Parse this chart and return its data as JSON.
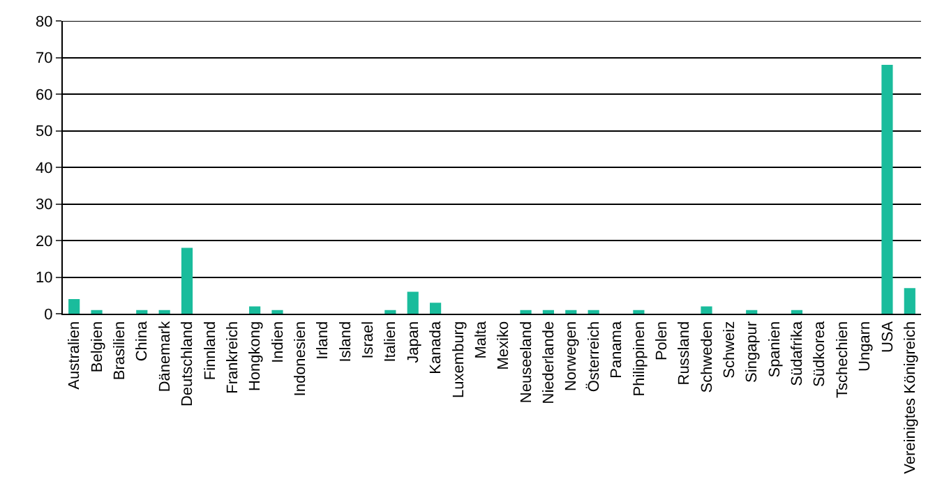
{
  "chart_data": {
    "type": "bar",
    "categories": [
      "Australien",
      "Belgien",
      "Brasilien",
      "China",
      "Dänemark",
      "Deutschland",
      "Finnland",
      "Frankreich",
      "Hongkong",
      "Indien",
      "Indonesien",
      "Irland",
      "Island",
      "Israel",
      "Italien",
      "Japan",
      "Kanada",
      "Luxemburg",
      "Malta",
      "Mexiko",
      "Neuseeland",
      "Niederlande",
      "Norwegen",
      "Österreich",
      "Panama",
      "Philippinen",
      "Polen",
      "Russland",
      "Schweden",
      "Schweiz",
      "Singapur",
      "Spanien",
      "Südafrika",
      "Südkorea",
      "Tschechien",
      "Ungarn",
      "USA",
      "Vereinigtes Königreich"
    ],
    "values": [
      4,
      1,
      0,
      1,
      1,
      18,
      0,
      0,
      2,
      1,
      0,
      0,
      0,
      0,
      1,
      6,
      3,
      0,
      0,
      0,
      1,
      1,
      1,
      1,
      0,
      1,
      0,
      0,
      2,
      0,
      1,
      0,
      1,
      0,
      0,
      0,
      68,
      7
    ],
    "color": "#1abc9c",
    "ylim": [
      0,
      80
    ],
    "yticks": [
      0,
      10,
      20,
      30,
      40,
      50,
      60,
      70,
      80
    ],
    "grid": "y"
  }
}
